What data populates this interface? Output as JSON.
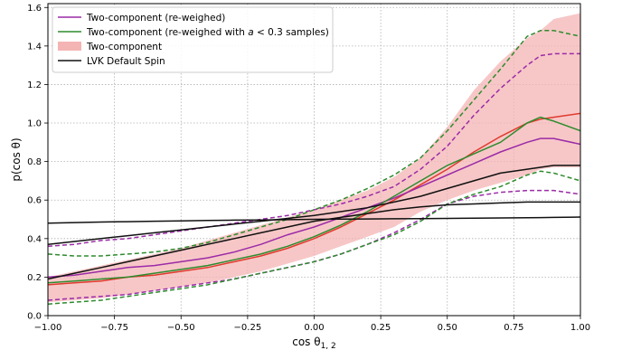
{
  "chart_data": {
    "type": "line",
    "title": "",
    "xlabel": "cos θ",
    "xlabel_sub": "1, 2",
    "ylabel": "p(cos θ)",
    "xlim": [
      -1.0,
      1.0
    ],
    "ylim": [
      0.0,
      1.62
    ],
    "xticks": [
      -1.0,
      -0.75,
      -0.5,
      -0.25,
      0.0,
      0.25,
      0.5,
      0.75,
      1.0
    ],
    "xtick_labels": [
      "−1.00",
      "−0.75",
      "−0.50",
      "−0.25",
      "0.00",
      "0.25",
      "0.50",
      "0.75",
      "1.00"
    ],
    "yticks": [
      0.0,
      0.2,
      0.4,
      0.6,
      0.8,
      1.0,
      1.2,
      1.4,
      1.6
    ],
    "ytick_labels": [
      "0.0",
      "0.2",
      "0.4",
      "0.6",
      "0.8",
      "1.0",
      "1.2",
      "1.4",
      "1.6"
    ],
    "grid": true,
    "legend_position": "top-left",
    "legend": [
      {
        "label": "Two-component (re-weighed)",
        "type": "line",
        "color": "#9b2ba7"
      },
      {
        "label_pre": "Two-component (re-weighed with ",
        "label_math": "a",
        "label_post": " < 0.3 samples)",
        "type": "line",
        "color": "#2e8b2e"
      },
      {
        "label": "Two-component",
        "type": "patch",
        "color": "#f4b4b4"
      },
      {
        "label": "LVK Default Spin",
        "type": "line",
        "color": "#111111"
      }
    ],
    "x": [
      -1.0,
      -0.9,
      -0.8,
      -0.7,
      -0.6,
      -0.5,
      -0.4,
      -0.3,
      -0.2,
      -0.1,
      0.0,
      0.1,
      0.2,
      0.3,
      0.4,
      0.5,
      0.6,
      0.7,
      0.8,
      0.85,
      0.9,
      1.0
    ],
    "band": {
      "name": "Two-component",
      "color": "#f4b4b4",
      "lower": [
        0.07,
        0.08,
        0.09,
        0.11,
        0.13,
        0.15,
        0.17,
        0.2,
        0.23,
        0.27,
        0.31,
        0.36,
        0.41,
        0.46,
        0.54,
        0.6,
        0.65,
        0.69,
        0.73,
        0.76,
        0.77,
        0.77
      ],
      "upper": [
        0.2,
        0.23,
        0.26,
        0.29,
        0.32,
        0.35,
        0.39,
        0.43,
        0.47,
        0.51,
        0.55,
        0.6,
        0.65,
        0.72,
        0.82,
        0.98,
        1.17,
        1.32,
        1.44,
        1.48,
        1.54,
        1.57
      ]
    },
    "series": [
      {
        "name": "Two-component",
        "color": "#e03a2e",
        "style": "solid",
        "values": [
          0.16,
          0.17,
          0.18,
          0.2,
          0.21,
          0.23,
          0.25,
          0.28,
          0.31,
          0.35,
          0.4,
          0.46,
          0.53,
          0.6,
          0.68,
          0.76,
          0.85,
          0.93,
          1.0,
          1.02,
          1.03,
          1.05
        ]
      },
      {
        "name": "Two-component (re-weighed)",
        "color": "#9b2ba7",
        "style": "solid",
        "values": [
          0.2,
          0.21,
          0.23,
          0.25,
          0.26,
          0.28,
          0.3,
          0.33,
          0.37,
          0.42,
          0.46,
          0.51,
          0.56,
          0.61,
          0.67,
          0.73,
          0.79,
          0.85,
          0.9,
          0.92,
          0.92,
          0.89
        ]
      },
      {
        "name": "Two-component (re-weighed) upper",
        "color": "#9b2ba7",
        "style": "dashed",
        "values": [
          0.36,
          0.37,
          0.39,
          0.4,
          0.42,
          0.44,
          0.46,
          0.48,
          0.5,
          0.52,
          0.55,
          0.58,
          0.62,
          0.67,
          0.76,
          0.88,
          1.04,
          1.18,
          1.3,
          1.35,
          1.36,
          1.36
        ]
      },
      {
        "name": "Two-component (re-weighed) lower",
        "color": "#9b2ba7",
        "style": "dashed",
        "values": [
          0.08,
          0.09,
          0.1,
          0.11,
          0.13,
          0.15,
          0.17,
          0.19,
          0.22,
          0.25,
          0.28,
          0.32,
          0.37,
          0.43,
          0.5,
          0.58,
          0.62,
          0.64,
          0.65,
          0.65,
          0.65,
          0.63
        ]
      },
      {
        "name": "Two-component (re-weighed with a < 0.3 samples)",
        "color": "#2e8b2e",
        "style": "solid",
        "values": [
          0.17,
          0.18,
          0.19,
          0.2,
          0.22,
          0.24,
          0.26,
          0.29,
          0.32,
          0.36,
          0.41,
          0.47,
          0.54,
          0.62,
          0.7,
          0.78,
          0.84,
          0.9,
          1.0,
          1.03,
          1.01,
          0.96
        ]
      },
      {
        "name": "Two-component (re-weighed with a < 0.3 samples) upper",
        "color": "#2e8b2e",
        "style": "dashed",
        "values": [
          0.32,
          0.31,
          0.31,
          0.32,
          0.33,
          0.35,
          0.38,
          0.42,
          0.46,
          0.5,
          0.55,
          0.6,
          0.66,
          0.73,
          0.82,
          0.96,
          1.12,
          1.28,
          1.45,
          1.48,
          1.48,
          1.45
        ]
      },
      {
        "name": "Two-component (re-weighed with a < 0.3 samples) lower",
        "color": "#2e8b2e",
        "style": "dashed",
        "values": [
          0.06,
          0.07,
          0.08,
          0.1,
          0.12,
          0.14,
          0.16,
          0.19,
          0.22,
          0.25,
          0.28,
          0.32,
          0.37,
          0.42,
          0.49,
          0.58,
          0.63,
          0.67,
          0.73,
          0.75,
          0.74,
          0.7
        ]
      },
      {
        "name": "LVK Default Spin",
        "color": "#111111",
        "style": "solid",
        "values": [
          0.48,
          0.483,
          0.486,
          0.488,
          0.49,
          0.492,
          0.494,
          0.496,
          0.497,
          0.498,
          0.5,
          0.501,
          0.502,
          0.503,
          0.504,
          0.505,
          0.506,
          0.507,
          0.508,
          0.509,
          0.51,
          0.512
        ]
      },
      {
        "name": "LVK Default Spin upper",
        "color": "#111111",
        "style": "solid",
        "values": [
          0.37,
          0.385,
          0.4,
          0.415,
          0.43,
          0.445,
          0.46,
          0.475,
          0.49,
          0.505,
          0.52,
          0.54,
          0.56,
          0.59,
          0.62,
          0.66,
          0.7,
          0.74,
          0.76,
          0.77,
          0.78,
          0.78
        ]
      },
      {
        "name": "LVK Default Spin lower",
        "color": "#111111",
        "style": "solid",
        "values": [
          0.19,
          0.22,
          0.25,
          0.28,
          0.31,
          0.34,
          0.37,
          0.4,
          0.43,
          0.46,
          0.49,
          0.51,
          0.53,
          0.55,
          0.565,
          0.575,
          0.58,
          0.585,
          0.59,
          0.59,
          0.59,
          0.59
        ]
      }
    ]
  }
}
